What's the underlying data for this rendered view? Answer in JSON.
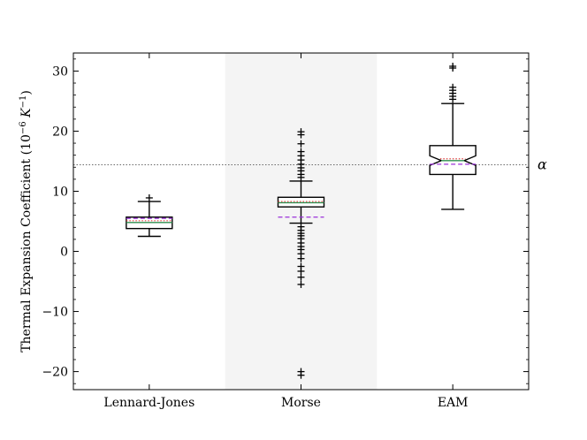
{
  "chart_data": {
    "type": "box",
    "ylabel_prefix": "Thermal Expansion Coefficient (10",
    "ylabel_exp1": "−6",
    "ylabel_mid": " K",
    "ylabel_exp2": "−1",
    "ylabel_suffix": ")",
    "ylim": [
      -23,
      33
    ],
    "yticks": [
      -20,
      -10,
      0,
      10,
      20,
      30
    ],
    "yticks_minor": [
      -22,
      -18,
      -16,
      -14,
      -12,
      -8,
      -6,
      -4,
      -2,
      2,
      4,
      6,
      8,
      12,
      14,
      16,
      18,
      22,
      24,
      26,
      28,
      32
    ],
    "reference_line": {
      "label": "α",
      "value": 14.4,
      "style": "dotted",
      "color": "#555555"
    },
    "highlight_band_category": "Morse",
    "highlight_color": "#f4f4f4",
    "categories": [
      "Lennard-Jones",
      "Morse",
      "EAM"
    ],
    "boxes": [
      {
        "category": "Lennard-Jones",
        "whisker_low": 2.5,
        "q1": 3.8,
        "median": 4.8,
        "q3": 5.7,
        "whisker_high": 8.3,
        "mean": 5.5,
        "ref_mean": 5.1,
        "notched": false,
        "outliers": [
          8.9
        ]
      },
      {
        "category": "Morse",
        "whisker_low": 4.7,
        "q1": 7.4,
        "median": 8.1,
        "q3": 9.0,
        "whisker_high": 11.7,
        "mean": 5.7,
        "ref_mean": 8.3,
        "notched": false,
        "outliers": [
          12.3,
          12.8,
          13.4,
          13.9,
          14.5,
          15.2,
          15.9,
          16.6,
          17.9,
          19.4,
          19.9,
          4.1,
          3.5,
          3.0,
          2.6,
          2.1,
          1.4,
          0.8,
          0.3,
          -0.4,
          -1.2,
          -2.5,
          -3.3,
          -4.3,
          -5.5,
          -20.0,
          -20.6
        ]
      },
      {
        "category": "EAM",
        "whisker_low": 7.0,
        "q1": 12.8,
        "median": 15.1,
        "q3": 17.6,
        "whisker_high": 24.6,
        "mean": 14.5,
        "ref_mean": 15.4,
        "notched": true,
        "notch_low": 14.3,
        "notch_high": 15.9,
        "outliers": [
          25.3,
          25.8,
          26.3,
          26.8,
          27.3,
          30.5,
          30.8
        ]
      }
    ],
    "mean_line_color": "#9b30d9",
    "ref_mean_color": "#e04040",
    "median_color": "#2f8f4f"
  }
}
